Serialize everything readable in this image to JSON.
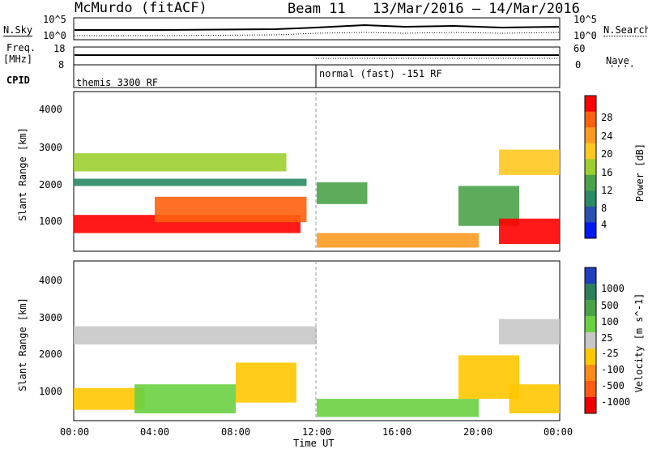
{
  "header": {
    "station": "McMurdo (fitACF)",
    "beam": "Beam 11",
    "date_range": "13/Mar/2016 – 14/Mar/2016"
  },
  "summary_panels": {
    "nsky_label": "N.Sky",
    "nsky_ticks": [
      "10^5",
      "10^0"
    ],
    "nsearch_label": "N.Search",
    "nsearch_ticks": [
      "10^5",
      "10^0"
    ],
    "freq_label_line1": "Freq.",
    "freq_label_line2": "[MHz]",
    "freq_ticks": [
      "18",
      "8"
    ],
    "nave_label": "Nave",
    "nave_ticks": [
      "60",
      "0"
    ],
    "cpid_label": "CPID",
    "cpid_modes": [
      {
        "name": "themis 3300 RF",
        "start_hour": 0,
        "end_hour": 12
      },
      {
        "name": "normal (fast) -151 RF",
        "start_hour": 12,
        "end_hour": 24
      }
    ]
  },
  "axes": {
    "ylabel": "Slant Range [km]",
    "y_ticks": [
      "4000",
      "3000",
      "2000",
      "1000"
    ],
    "xlabel": "Time UT",
    "x_ticks": [
      "00:00",
      "04:00",
      "08:00",
      "12:00",
      "16:00",
      "20:00",
      "00:00"
    ]
  },
  "power_colorbar": {
    "label": "Power [dB]",
    "ticks": [
      "28",
      "24",
      "20",
      "16",
      "12",
      "8",
      "4"
    ],
    "colors": [
      "#ff0000",
      "#ff6010",
      "#ff9a20",
      "#ffc820",
      "#9ccf30",
      "#4aa34a",
      "#2a8a64",
      "#2a50b0",
      "#0018f0"
    ]
  },
  "velocity_colorbar": {
    "label": "Velocity [m s^-1]",
    "ticks": [
      "1000",
      "500",
      "100",
      "25",
      "-25",
      "-100",
      "-500",
      "-1000"
    ],
    "colors": [
      "#1f3fbf",
      "#2c7f5a",
      "#4aa34a",
      "#6ad040",
      "#c8c8c8",
      "#ffc800",
      "#ff8a1a",
      "#ff5a14",
      "#ee0000"
    ]
  },
  "chart_data": [
    {
      "type": "heatmap",
      "title": "",
      "xlabel": "Time UT",
      "ylabel": "Slant Range [km]",
      "xlim": [
        0,
        24
      ],
      "ylim": [
        200,
        4600
      ],
      "colorbar_label": "Power [dB]",
      "value_range": [
        0,
        30
      ],
      "features": [
        {
          "t_start": 0,
          "t_end": 11.2,
          "range_start": 700,
          "range_end": 1200,
          "value": 28
        },
        {
          "t_start": 4,
          "t_end": 11.5,
          "range_start": 1000,
          "range_end": 1700,
          "value": 24
        },
        {
          "t_start": 0,
          "t_end": 10.5,
          "range_start": 2400,
          "range_end": 2900,
          "value": 14
        },
        {
          "t_start": 0,
          "t_end": 11.5,
          "range_start": 2000,
          "range_end": 2200,
          "value": 8
        },
        {
          "t_start": 12,
          "t_end": 14.5,
          "range_start": 1500,
          "range_end": 2100,
          "value": 10
        },
        {
          "t_start": 12,
          "t_end": 20,
          "range_start": 300,
          "range_end": 700,
          "value": 22
        },
        {
          "t_start": 19,
          "t_end": 22,
          "range_start": 900,
          "range_end": 2000,
          "value": 10
        },
        {
          "t_start": 21,
          "t_end": 24,
          "range_start": 400,
          "range_end": 1100,
          "value": 28
        },
        {
          "t_start": 21,
          "t_end": 24,
          "range_start": 2300,
          "range_end": 3000,
          "value": 18
        }
      ]
    },
    {
      "type": "heatmap",
      "title": "",
      "xlabel": "Time UT",
      "ylabel": "Slant Range [km]",
      "xlim": [
        0,
        24
      ],
      "ylim": [
        200,
        4600
      ],
      "colorbar_label": "Velocity [m s^-1]",
      "value_range": [
        -1000,
        1000
      ],
      "features": [
        {
          "t_start": 0,
          "t_end": 3.5,
          "range_start": 500,
          "range_end": 1100,
          "value": -200
        },
        {
          "t_start": 3,
          "t_end": 8,
          "range_start": 400,
          "range_end": 1200,
          "value": 150
        },
        {
          "t_start": 8,
          "t_end": 11,
          "range_start": 700,
          "range_end": 1800,
          "value": -150
        },
        {
          "t_start": 0,
          "t_end": 12,
          "range_start": 2300,
          "range_end": 2800,
          "value": 0
        },
        {
          "t_start": 12,
          "t_end": 20,
          "range_start": 300,
          "range_end": 800,
          "value": 120
        },
        {
          "t_start": 19,
          "t_end": 22,
          "range_start": 800,
          "range_end": 2000,
          "value": -120
        },
        {
          "t_start": 21.5,
          "t_end": 24,
          "range_start": 400,
          "range_end": 1200,
          "value": -300
        },
        {
          "t_start": 21,
          "t_end": 24,
          "range_start": 2300,
          "range_end": 3000,
          "value": 0
        }
      ]
    }
  ]
}
